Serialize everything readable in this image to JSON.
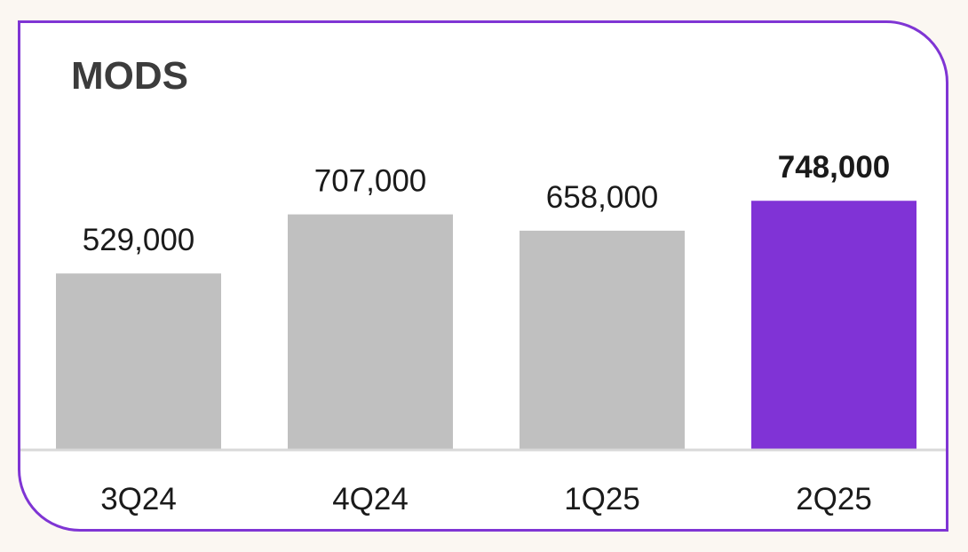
{
  "chart_data": {
    "type": "bar",
    "title": "MODS",
    "categories": [
      "3Q24",
      "4Q24",
      "1Q25",
      "2Q25"
    ],
    "values": [
      529000,
      707000,
      658000,
      748000
    ],
    "value_labels": [
      "529,000",
      "707,000",
      "658,000",
      "748,000"
    ],
    "highlight_index": 3,
    "xlabel": "",
    "ylabel": "",
    "ylim": [
      0,
      1400000
    ],
    "grid": false,
    "legend": "none"
  },
  "colors": {
    "background": "#fbf7f2",
    "card": "#ffffff",
    "border": "#7f35d4",
    "bar": "#c0c0c0",
    "bar_highlight": "#8033d6",
    "baseline": "#d9d9d9",
    "text": "#1a1a1a",
    "title": "#3c3c3c"
  }
}
